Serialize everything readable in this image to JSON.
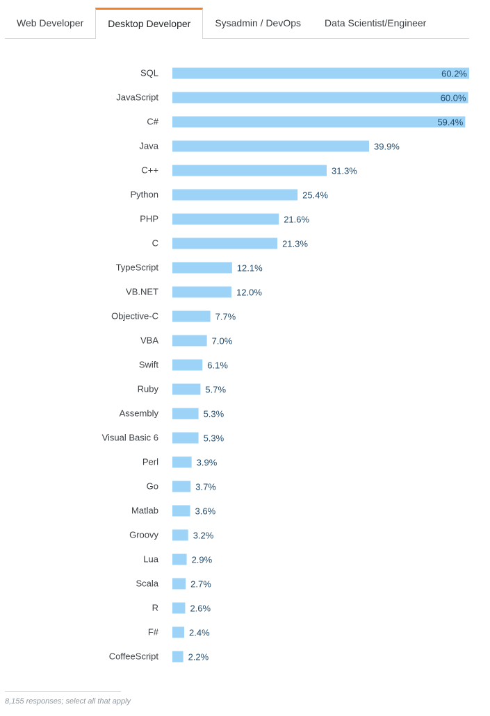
{
  "tabs": [
    {
      "label": "Web Developer",
      "active": false
    },
    {
      "label": "Desktop Developer",
      "active": true
    },
    {
      "label": "Sysadmin / DevOps",
      "active": false
    },
    {
      "label": "Data Scientist/Engineer",
      "active": false
    }
  ],
  "colors": {
    "bar": "#9cd3f7",
    "value_text": "#244d6e",
    "tab_accent": "#f48024"
  },
  "chart_data": {
    "type": "bar",
    "orientation": "horizontal",
    "categories": [
      "SQL",
      "JavaScript",
      "C#",
      "Java",
      "C++",
      "Python",
      "PHP",
      "C",
      "TypeScript",
      "VB.NET",
      "Objective-C",
      "VBA",
      "Swift",
      "Ruby",
      "Assembly",
      "Visual Basic 6",
      "Perl",
      "Go",
      "Matlab",
      "Groovy",
      "Lua",
      "Scala",
      "R",
      "F#",
      "CoffeeScript"
    ],
    "values": [
      60.2,
      60.0,
      59.4,
      39.9,
      31.3,
      25.4,
      21.6,
      21.3,
      12.1,
      12.0,
      7.7,
      7.0,
      6.1,
      5.7,
      5.3,
      5.3,
      3.9,
      3.7,
      3.6,
      3.2,
      2.9,
      2.7,
      2.6,
      2.4,
      2.2
    ],
    "value_labels": [
      "60.2%",
      "60.0%",
      "59.4%",
      "39.9%",
      "31.3%",
      "25.4%",
      "21.6%",
      "21.3%",
      "12.1%",
      "12.0%",
      "7.7%",
      "7.0%",
      "6.1%",
      "5.7%",
      "5.3%",
      "5.3%",
      "3.9%",
      "3.7%",
      "3.6%",
      "3.2%",
      "2.9%",
      "2.7%",
      "2.6%",
      "2.4%",
      "2.2%"
    ],
    "unit": "%",
    "xlim": [
      0,
      60.2
    ],
    "grid": false,
    "legend": "none"
  },
  "footnote": "8,155 responses; select all that apply"
}
